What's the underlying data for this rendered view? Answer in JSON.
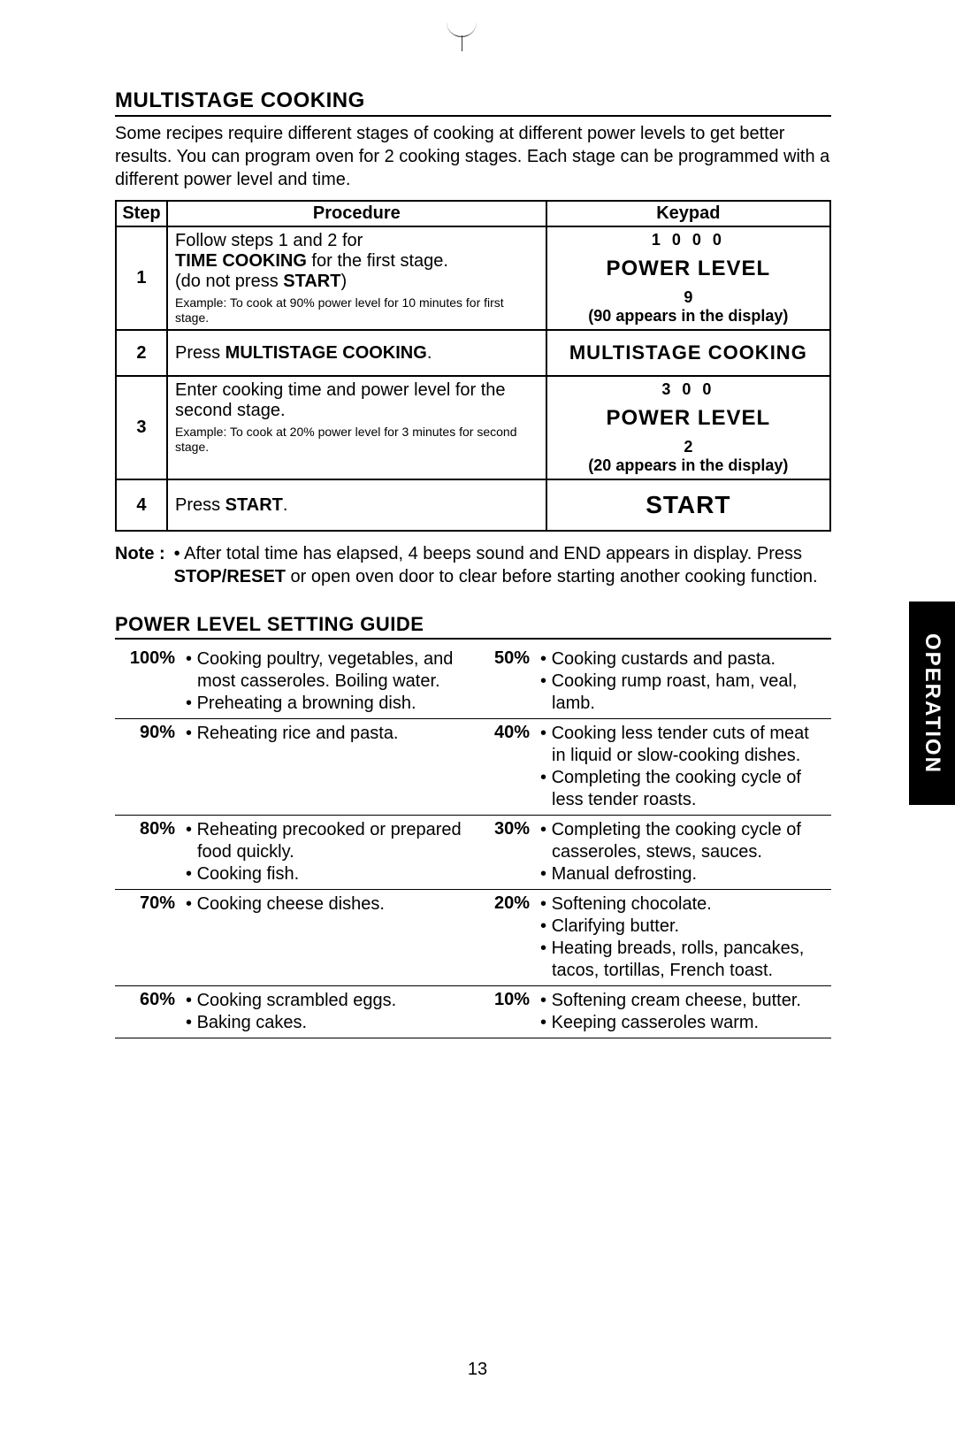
{
  "side_tab": "OPERATION",
  "page_number": "13",
  "section1": {
    "title": "MULTISTAGE COOKING",
    "intro": "Some recipes require different stages of cooking at different power levels to get better results.  You can program oven for 2 cooking stages.  Each stage can be programmed with a different power level and time."
  },
  "table_headers": {
    "step": "Step",
    "procedure": "Procedure",
    "keypad": "Keypad"
  },
  "steps": {
    "s1": {
      "num": "1",
      "p_line1": "Follow steps 1 and 2 for",
      "p_line2a": "TIME COOKING",
      "p_line2b": " for the first stage.",
      "p_line3a": "(do not press ",
      "p_line3b": "START",
      "p_line3c": ")",
      "example": "Example: To cook at 90% power level for 10 minutes for first stage.",
      "k_time": "1 0 0 0",
      "k_label": "POWER LEVEL",
      "k_num": "9",
      "k_disp": "(90 appears in the display)"
    },
    "s2": {
      "num": "2",
      "p_a": "Press ",
      "p_b": "MULTISTAGE COOKING",
      "p_c": ".",
      "k_label": "MULTISTAGE COOKING"
    },
    "s3": {
      "num": "3",
      "p_line1": "Enter cooking time and power level for the second stage.",
      "example": "Example: To cook at 20% power level for 3 minutes for second stage.",
      "k_time": "3 0 0",
      "k_label": "POWER LEVEL",
      "k_num": "2",
      "k_disp": "(20 appears in the display)"
    },
    "s4": {
      "num": "4",
      "p_a": "Press ",
      "p_b": "START",
      "p_c": ".",
      "k_label": "START"
    }
  },
  "note": {
    "label": "Note :",
    "l1": "• After total time has elapsed, 4 beeps sound and END appears in display.  Press ",
    "b1": "STOP/RESET",
    "l2": " or open oven door to clear before starting another cooking function."
  },
  "section2": {
    "title": "POWER LEVEL SETTING GUIDE"
  },
  "guide": {
    "left": [
      {
        "pct": "100%",
        "items": [
          "Cooking poultry, vegetables, and most casseroles. Boiling water.",
          "Preheating a browning dish."
        ]
      },
      {
        "pct": "90%",
        "items": [
          "Reheating rice and pasta."
        ]
      },
      {
        "pct": "80%",
        "items": [
          "Reheating precooked or prepared food quickly.",
          "Cooking fish."
        ]
      },
      {
        "pct": "70%",
        "items": [
          "Cooking cheese dishes."
        ]
      },
      {
        "pct": "60%",
        "items": [
          "Cooking scrambled eggs.",
          "Baking cakes."
        ]
      }
    ],
    "right": [
      {
        "pct": "50%",
        "items": [
          "Cooking custards and pasta.",
          "Cooking rump roast, ham, veal, lamb."
        ]
      },
      {
        "pct": "40%",
        "items": [
          "Cooking less tender cuts of meat in liquid or slow-cooking dishes.",
          "Completing the cooking cycle of less tender roasts."
        ]
      },
      {
        "pct": "30%",
        "items": [
          "Completing the cooking cycle of casseroles, stews, sauces.",
          "Manual defrosting."
        ]
      },
      {
        "pct": "20%",
        "items": [
          "Softening chocolate.",
          "Clarifying butter.",
          "Heating breads, rolls, pancakes, tacos, tortillas, French toast."
        ]
      },
      {
        "pct": "10%",
        "items": [
          "Softening cream cheese, butter.",
          "Keeping casseroles warm."
        ]
      }
    ]
  }
}
